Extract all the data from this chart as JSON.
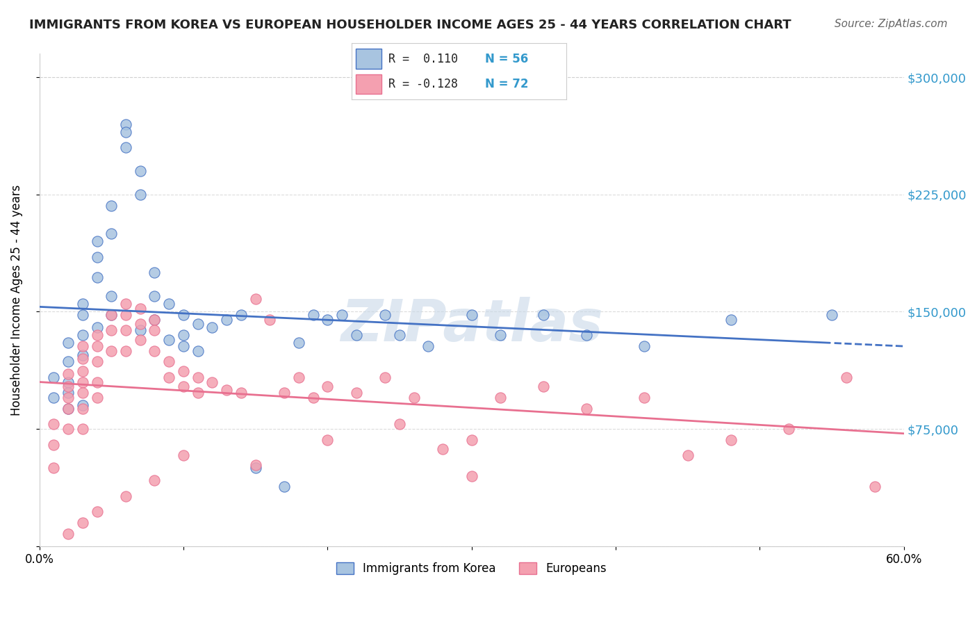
{
  "title": "IMMIGRANTS FROM KOREA VS EUROPEAN HOUSEHOLDER INCOME AGES 25 - 44 YEARS CORRELATION CHART",
  "source": "Source: ZipAtlas.com",
  "xlabel": "",
  "ylabel": "Householder Income Ages 25 - 44 years",
  "xlim": [
    0.0,
    0.6
  ],
  "ylim": [
    0,
    315000
  ],
  "yticks": [
    0,
    75000,
    150000,
    225000,
    300000
  ],
  "ytick_labels": [
    "",
    "$75,000",
    "$150,000",
    "$225,000",
    "$300,000"
  ],
  "xticks": [
    0.0,
    0.1,
    0.2,
    0.3,
    0.4,
    0.5,
    0.6
  ],
  "xtick_labels": [
    "0.0%",
    "",
    "",
    "",
    "",
    "",
    "60.0%"
  ],
  "r_korea": 0.11,
  "n_korea": 56,
  "r_european": -0.128,
  "n_european": 72,
  "korea_color": "#a8c4e0",
  "european_color": "#f4a0b0",
  "korea_line_color": "#4472c4",
  "european_line_color": "#e87090",
  "background_color": "#ffffff",
  "grid_color": "#cccccc",
  "watermark_text": "ZIPatlas",
  "watermark_color": "#c8d8e8",
  "korea_scatter": {
    "x": [
      0.01,
      0.01,
      0.02,
      0.02,
      0.02,
      0.02,
      0.02,
      0.03,
      0.03,
      0.03,
      0.03,
      0.03,
      0.04,
      0.04,
      0.04,
      0.04,
      0.05,
      0.05,
      0.05,
      0.05,
      0.06,
      0.06,
      0.06,
      0.07,
      0.07,
      0.07,
      0.08,
      0.08,
      0.08,
      0.09,
      0.09,
      0.1,
      0.1,
      0.1,
      0.11,
      0.11,
      0.12,
      0.13,
      0.14,
      0.15,
      0.17,
      0.18,
      0.19,
      0.2,
      0.21,
      0.22,
      0.24,
      0.25,
      0.27,
      0.3,
      0.32,
      0.35,
      0.38,
      0.42,
      0.48,
      0.55
    ],
    "y": [
      108000,
      95000,
      130000,
      118000,
      105000,
      98000,
      88000,
      155000,
      148000,
      135000,
      122000,
      90000,
      195000,
      185000,
      172000,
      140000,
      218000,
      200000,
      160000,
      148000,
      270000,
      265000,
      255000,
      240000,
      225000,
      138000,
      175000,
      160000,
      145000,
      155000,
      132000,
      148000,
      135000,
      128000,
      142000,
      125000,
      140000,
      145000,
      148000,
      50000,
      38000,
      130000,
      148000,
      145000,
      148000,
      135000,
      148000,
      135000,
      128000,
      148000,
      135000,
      148000,
      135000,
      128000,
      145000,
      148000
    ]
  },
  "european_scatter": {
    "x": [
      0.01,
      0.01,
      0.01,
      0.02,
      0.02,
      0.02,
      0.02,
      0.02,
      0.03,
      0.03,
      0.03,
      0.03,
      0.03,
      0.03,
      0.03,
      0.04,
      0.04,
      0.04,
      0.04,
      0.04,
      0.05,
      0.05,
      0.05,
      0.06,
      0.06,
      0.06,
      0.06,
      0.07,
      0.07,
      0.07,
      0.08,
      0.08,
      0.08,
      0.09,
      0.09,
      0.1,
      0.1,
      0.11,
      0.11,
      0.12,
      0.13,
      0.14,
      0.15,
      0.16,
      0.17,
      0.18,
      0.19,
      0.2,
      0.22,
      0.24,
      0.26,
      0.28,
      0.3,
      0.32,
      0.35,
      0.38,
      0.42,
      0.45,
      0.48,
      0.52,
      0.56,
      0.58,
      0.3,
      0.25,
      0.2,
      0.15,
      0.1,
      0.08,
      0.06,
      0.04,
      0.03,
      0.02
    ],
    "y": [
      78000,
      65000,
      50000,
      110000,
      102000,
      95000,
      88000,
      75000,
      128000,
      120000,
      112000,
      105000,
      98000,
      88000,
      75000,
      135000,
      128000,
      118000,
      105000,
      95000,
      148000,
      138000,
      125000,
      155000,
      148000,
      138000,
      125000,
      152000,
      142000,
      132000,
      145000,
      138000,
      125000,
      118000,
      108000,
      112000,
      102000,
      108000,
      98000,
      105000,
      100000,
      98000,
      158000,
      145000,
      98000,
      108000,
      95000,
      102000,
      98000,
      108000,
      95000,
      62000,
      68000,
      95000,
      102000,
      88000,
      95000,
      58000,
      68000,
      75000,
      108000,
      38000,
      45000,
      78000,
      68000,
      52000,
      58000,
      42000,
      32000,
      22000,
      15000,
      8000
    ]
  }
}
